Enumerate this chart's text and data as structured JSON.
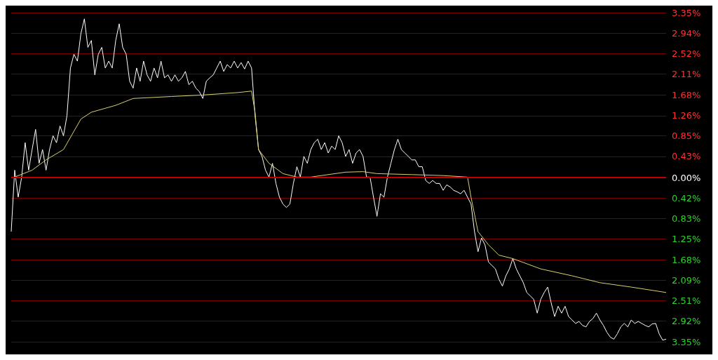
{
  "chart_data": {
    "type": "line",
    "categories": [
      null,
      null,
      null,
      null,
      null,
      null,
      null,
      null,
      null,
      null,
      null,
      null,
      null,
      null,
      null,
      null,
      null,
      null,
      null,
      null,
      null,
      null,
      null,
      null,
      null,
      null,
      null,
      null,
      null,
      null,
      null,
      null,
      null,
      null,
      null,
      null,
      null,
      null,
      null,
      null,
      null,
      null,
      null,
      null,
      null,
      null,
      null,
      null,
      null,
      null,
      null,
      null,
      null,
      null,
      null,
      null,
      null,
      null,
      null,
      null,
      null,
      null,
      null,
      null,
      null,
      null,
      null,
      null,
      null,
      null,
      null,
      null,
      null,
      null,
      null,
      null,
      null,
      null,
      null,
      null,
      null,
      null,
      null,
      null,
      null,
      null,
      null,
      null,
      null,
      null,
      null,
      null,
      null,
      null,
      null,
      null,
      null,
      null,
      null,
      null,
      null,
      null,
      null,
      null,
      null,
      null,
      null,
      null,
      null,
      null,
      null,
      null,
      null,
      null,
      null,
      null,
      null,
      null,
      null,
      null,
      null,
      null,
      null,
      null,
      null,
      null,
      null,
      null,
      null,
      null,
      null,
      null,
      null,
      null,
      null,
      null,
      null,
      null,
      null,
      null,
      null,
      null,
      null,
      null,
      null,
      null,
      null,
      null,
      null,
      null,
      null,
      null,
      null,
      null,
      null,
      null,
      null,
      null,
      null,
      null,
      null,
      null,
      null,
      null,
      null,
      null,
      null,
      null,
      null,
      null,
      null,
      null,
      null,
      null,
      null,
      null,
      null,
      null,
      null,
      null,
      null,
      null,
      null,
      null,
      null,
      null,
      null,
      null,
      null
    ],
    "ylim": [
      -3.6,
      3.5
    ],
    "yticks": [
      {
        "value": 3.35,
        "label": "3.35%"
      },
      {
        "value": 2.94,
        "label": "2.94%"
      },
      {
        "value": 2.52,
        "label": "2.52%"
      },
      {
        "value": 2.11,
        "label": "2.11%"
      },
      {
        "value": 1.68,
        "label": "1.68%"
      },
      {
        "value": 1.26,
        "label": "1.26%"
      },
      {
        "value": 0.85,
        "label": "0.85%"
      },
      {
        "value": 0.43,
        "label": "0.43%"
      },
      {
        "value": 0,
        "label": "0.00%"
      },
      {
        "value": -0.42,
        "label": "0.42%"
      },
      {
        "value": -0.83,
        "label": "0.83%"
      },
      {
        "value": -1.25,
        "label": "1.25%"
      },
      {
        "value": -1.68,
        "label": "1.68%"
      },
      {
        "value": -2.09,
        "label": "2.09%"
      },
      {
        "value": -2.51,
        "label": "2.51%"
      },
      {
        "value": -2.92,
        "label": "2.92%"
      },
      {
        "value": -3.35,
        "label": "3.35%"
      }
    ],
    "tick_labels": "y",
    "grid": "y",
    "line_style": "solid",
    "ref_lines": [
      {
        "axis": "y",
        "value": 0,
        "color": "#c00000"
      }
    ],
    "series": [
      {
        "color": "#ffffff",
        "values": [
          -1.1,
          0.15,
          -0.4,
          0.01,
          0.71,
          0.15,
          0.57,
          0.98,
          0.29,
          0.57,
          0.15,
          0.57,
          0.85,
          0.71,
          1.05,
          0.85,
          1.26,
          2.23,
          2.51,
          2.37,
          2.93,
          3.23,
          2.65,
          2.79,
          2.09,
          2.51,
          2.65,
          2.23,
          2.37,
          2.23,
          2.79,
          3.13,
          2.65,
          2.51,
          1.96,
          1.82,
          2.23,
          1.96,
          2.37,
          2.09,
          1.96,
          2.23,
          2.03,
          2.37,
          2.03,
          2.09,
          1.96,
          2.09,
          1.96,
          2.03,
          2.16,
          1.89,
          1.96,
          1.82,
          1.75,
          1.61,
          1.96,
          2.03,
          2.09,
          2.23,
          2.37,
          2.16,
          2.3,
          2.23,
          2.37,
          2.23,
          2.34,
          2.21,
          2.37,
          2.23,
          1.26,
          0.57,
          0.43,
          0.15,
          0.01,
          0.29,
          -0.12,
          -0.4,
          -0.54,
          -0.61,
          -0.54,
          -0.12,
          0.22,
          0.01,
          0.43,
          0.29,
          0.57,
          0.71,
          0.78,
          0.57,
          0.71,
          0.5,
          0.64,
          0.57,
          0.85,
          0.71,
          0.43,
          0.57,
          0.29,
          0.5,
          0.57,
          0.43,
          0.01,
          0.01,
          -0.4,
          -0.79,
          -0.33,
          -0.4,
          0.01,
          0.29,
          0.57,
          0.78,
          0.57,
          0.5,
          0.43,
          0.36,
          0.36,
          0.22,
          0.22,
          -0.06,
          -0.12,
          -0.06,
          -0.12,
          -0.12,
          -0.26,
          -0.15,
          -0.19,
          -0.26,
          -0.29,
          -0.33,
          -0.26,
          -0.4,
          -0.54,
          -1.1,
          -1.51,
          -1.23,
          -1.37,
          -1.72,
          -1.79,
          -1.86,
          -2.07,
          -2.21,
          -2.0,
          -1.86,
          -1.65,
          -1.86,
          -2.0,
          -2.14,
          -2.34,
          -2.41,
          -2.48,
          -2.76,
          -2.48,
          -2.34,
          -2.23,
          -2.55,
          -2.83,
          -2.62,
          -2.76,
          -2.62,
          -2.83,
          -2.9,
          -2.97,
          -2.93,
          -3.01,
          -3.04,
          -2.93,
          -2.87,
          -2.76,
          -2.9,
          -3.01,
          -3.15,
          -3.25,
          -3.29,
          -3.18,
          -3.04,
          -2.97,
          -3.04,
          -2.9,
          -2.97,
          -2.93,
          -2.97,
          -3.01,
          -3.04,
          -2.98,
          -2.97,
          -3.18,
          -3.31,
          -3.29
        ]
      },
      {
        "color": "#d8d070",
        "values": [
          null,
          0.01,
          null,
          null,
          null,
          null,
          0.15,
          null,
          null,
          null,
          0.36,
          null,
          null,
          null,
          null,
          0.57,
          null,
          null,
          null,
          null,
          1.19,
          null,
          null,
          1.33,
          null,
          null,
          null,
          null,
          null,
          null,
          1.47,
          null,
          null,
          null,
          null,
          1.61,
          null,
          null,
          null,
          null,
          null,
          null,
          null,
          null,
          null,
          null,
          1.65,
          null,
          null,
          null,
          null,
          null,
          null,
          null,
          null,
          1.68,
          null,
          null,
          null,
          null,
          null,
          null,
          null,
          null,
          null,
          1.73,
          null,
          null,
          null,
          1.76,
          1.33,
          0.57,
          null,
          null,
          0.29,
          null,
          null,
          null,
          0.08,
          null,
          null,
          null,
          0.01,
          null,
          null,
          null,
          0.01,
          null,
          null,
          null,
          null,
          null,
          null,
          null,
          null,
          null,
          0.11,
          null,
          null,
          null,
          null,
          0.12,
          null,
          null,
          null,
          0.08,
          null,
          null,
          null,
          null,
          null,
          null,
          null,
          null,
          null,
          0.06,
          null,
          null,
          null,
          null,
          null,
          null,
          null,
          null,
          0.04,
          null,
          null,
          null,
          null,
          null,
          null,
          0.01,
          -0.4,
          null,
          -1.1,
          null,
          null,
          -1.37,
          null,
          null,
          -1.58,
          null,
          null,
          null,
          -1.65,
          null,
          null,
          null,
          null,
          null,
          null,
          null,
          -1.86,
          null,
          null,
          null,
          null,
          null,
          null,
          null,
          null,
          -2.0,
          null,
          null,
          null,
          null,
          null,
          null,
          null,
          -2.14,
          null,
          null,
          null,
          null,
          null,
          null,
          null,
          null,
          -2.23,
          null,
          null,
          null,
          null,
          null,
          null,
          null,
          null,
          null,
          -2.34
        ]
      }
    ]
  }
}
